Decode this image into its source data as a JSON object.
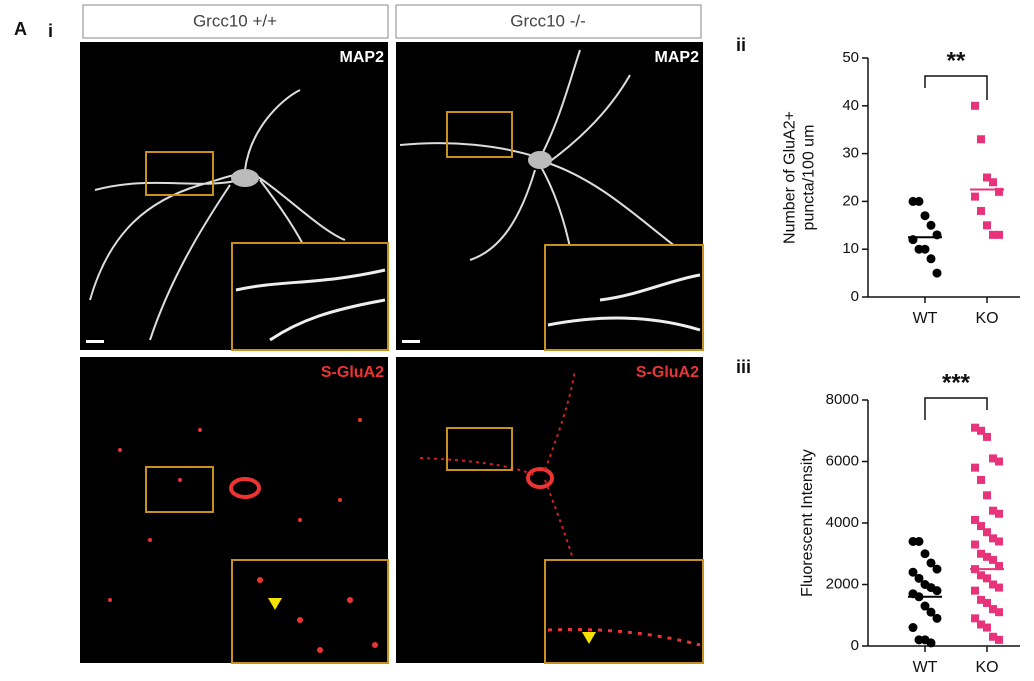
{
  "figure": {
    "panel_label": "A",
    "subpanels": [
      "i",
      "ii",
      "iii"
    ],
    "columns": [
      "Grcc10 +/+",
      "Grcc10 -/-"
    ],
    "stains": [
      "MAP2",
      "S-GluA2"
    ]
  },
  "chart_data": [
    {
      "type": "dot",
      "ylabel": [
        "Number of GluA2+",
        "puncta/100 um"
      ],
      "annotation": "**",
      "categories": [
        "WT",
        "KO"
      ],
      "colors": [
        "#000000",
        "#e8327a"
      ],
      "markers": [
        "circle",
        "square"
      ],
      "values": [
        [
          20,
          20,
          17,
          15,
          13,
          12,
          10,
          10,
          8,
          5
        ],
        [
          40,
          33,
          25,
          24,
          22,
          21,
          18,
          15,
          13,
          13
        ]
      ],
      "centers": [
        12.5,
        22.5
      ],
      "ylim": [
        0,
        50
      ],
      "yticks": [
        0,
        10,
        20,
        30,
        40,
        50
      ]
    },
    {
      "type": "dot",
      "ylabel": [
        "Fluorescent Intensity"
      ],
      "annotation": "***",
      "categories": [
        "WT",
        "KO"
      ],
      "colors": [
        "#000000",
        "#e8327a"
      ],
      "markers": [
        "circle",
        "square"
      ],
      "values": [
        [
          3400,
          3400,
          3000,
          2700,
          2500,
          2400,
          2200,
          2000,
          1900,
          1800,
          1700,
          1600,
          1300,
          1100,
          900,
          600,
          200,
          200,
          100
        ],
        [
          7100,
          7000,
          6800,
          6100,
          6000,
          5800,
          5400,
          4900,
          4400,
          4300,
          4100,
          3900,
          3700,
          3500,
          3400,
          3300,
          3000,
          2900,
          2800,
          2600,
          2500,
          2300,
          2200,
          2000,
          1900,
          1800,
          1500,
          1400,
          1200,
          1100,
          900,
          700,
          600,
          300,
          200
        ]
      ],
      "centers": [
        1600,
        2500
      ],
      "ylim": [
        0,
        8000
      ],
      "yticks": [
        0,
        2000,
        4000,
        6000,
        8000
      ]
    }
  ]
}
